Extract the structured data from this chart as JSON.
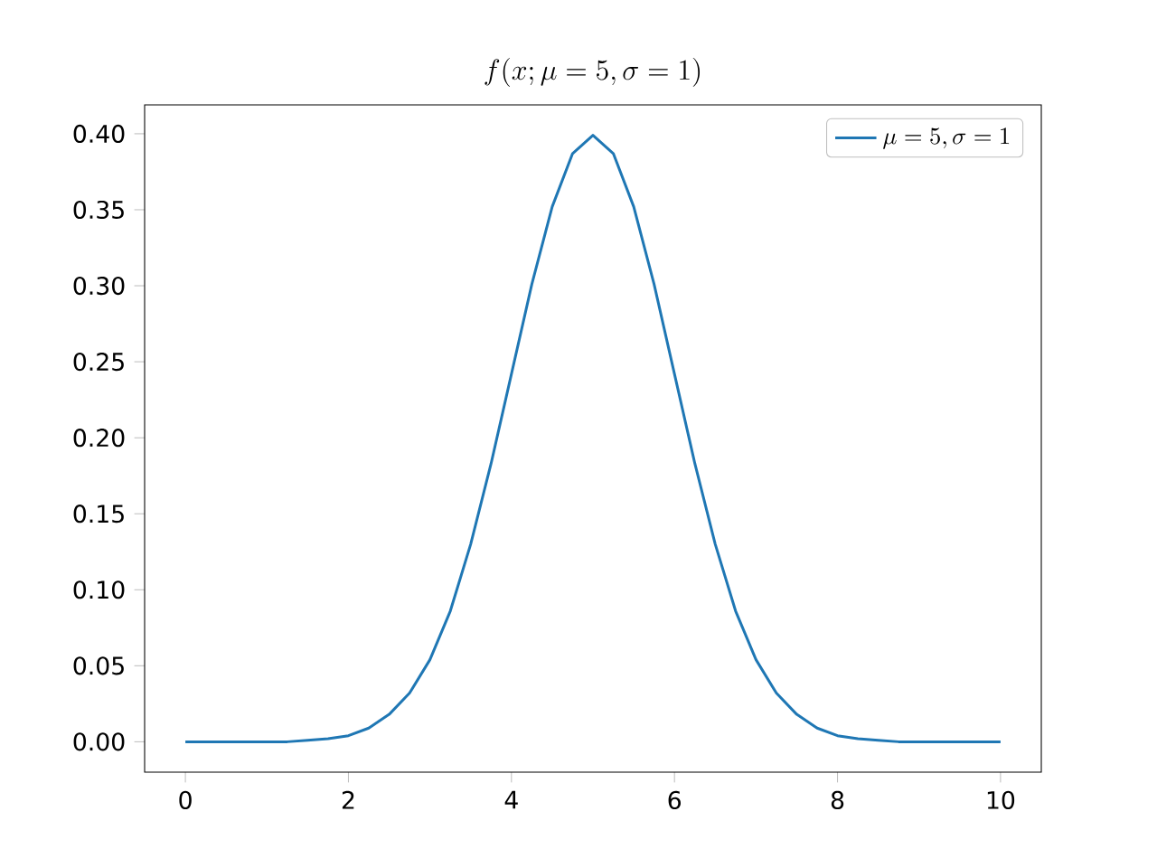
{
  "chart_data": {
    "type": "line",
    "title": "f(x;\\mu=5,\\sigma=1)",
    "x": [
      0,
      0.25,
      0.5,
      0.75,
      1,
      1.25,
      1.5,
      1.75,
      2,
      2.25,
      2.5,
      2.75,
      3,
      3.25,
      3.5,
      3.75,
      4,
      4.25,
      4.5,
      4.75,
      5,
      5.25,
      5.5,
      5.75,
      6,
      6.25,
      6.5,
      6.75,
      7,
      7.25,
      7.5,
      7.75,
      8,
      8.25,
      8.5,
      8.75,
      9,
      9.25,
      9.5,
      9.75,
      10
    ],
    "series": [
      {
        "name": "\\mu=5,\\sigma=1",
        "color": "#1f77b4",
        "values": [
          0.0,
          0.0,
          0.0,
          0.0,
          0.0,
          0.0,
          0.001,
          0.002,
          0.004,
          0.009,
          0.018,
          0.032,
          0.054,
          0.086,
          0.13,
          0.183,
          0.242,
          0.301,
          0.352,
          0.387,
          0.399,
          0.387,
          0.352,
          0.301,
          0.242,
          0.183,
          0.13,
          0.086,
          0.054,
          0.032,
          0.018,
          0.009,
          0.004,
          0.002,
          0.001,
          0.0,
          0.0,
          0.0,
          0.0,
          0.0,
          0.0
        ]
      }
    ],
    "xlim": [
      -0.5,
      10.5
    ],
    "ylim": [
      -0.02,
      0.419
    ],
    "xticks": [
      0,
      2,
      4,
      6,
      8,
      10
    ],
    "yticks": [
      {
        "value": 0,
        "label": "0.00"
      },
      {
        "value": 0.05,
        "label": "0.05"
      },
      {
        "value": 0.1,
        "label": "0.10"
      },
      {
        "value": 0.15,
        "label": "0.15"
      },
      {
        "value": 0.2,
        "label": "0.20"
      },
      {
        "value": 0.25,
        "label": "0.25"
      },
      {
        "value": 0.3,
        "label": "0.30"
      },
      {
        "value": 0.35,
        "label": "0.35"
      },
      {
        "value": 0.4,
        "label": "0.40"
      }
    ],
    "legend": "top right"
  }
}
